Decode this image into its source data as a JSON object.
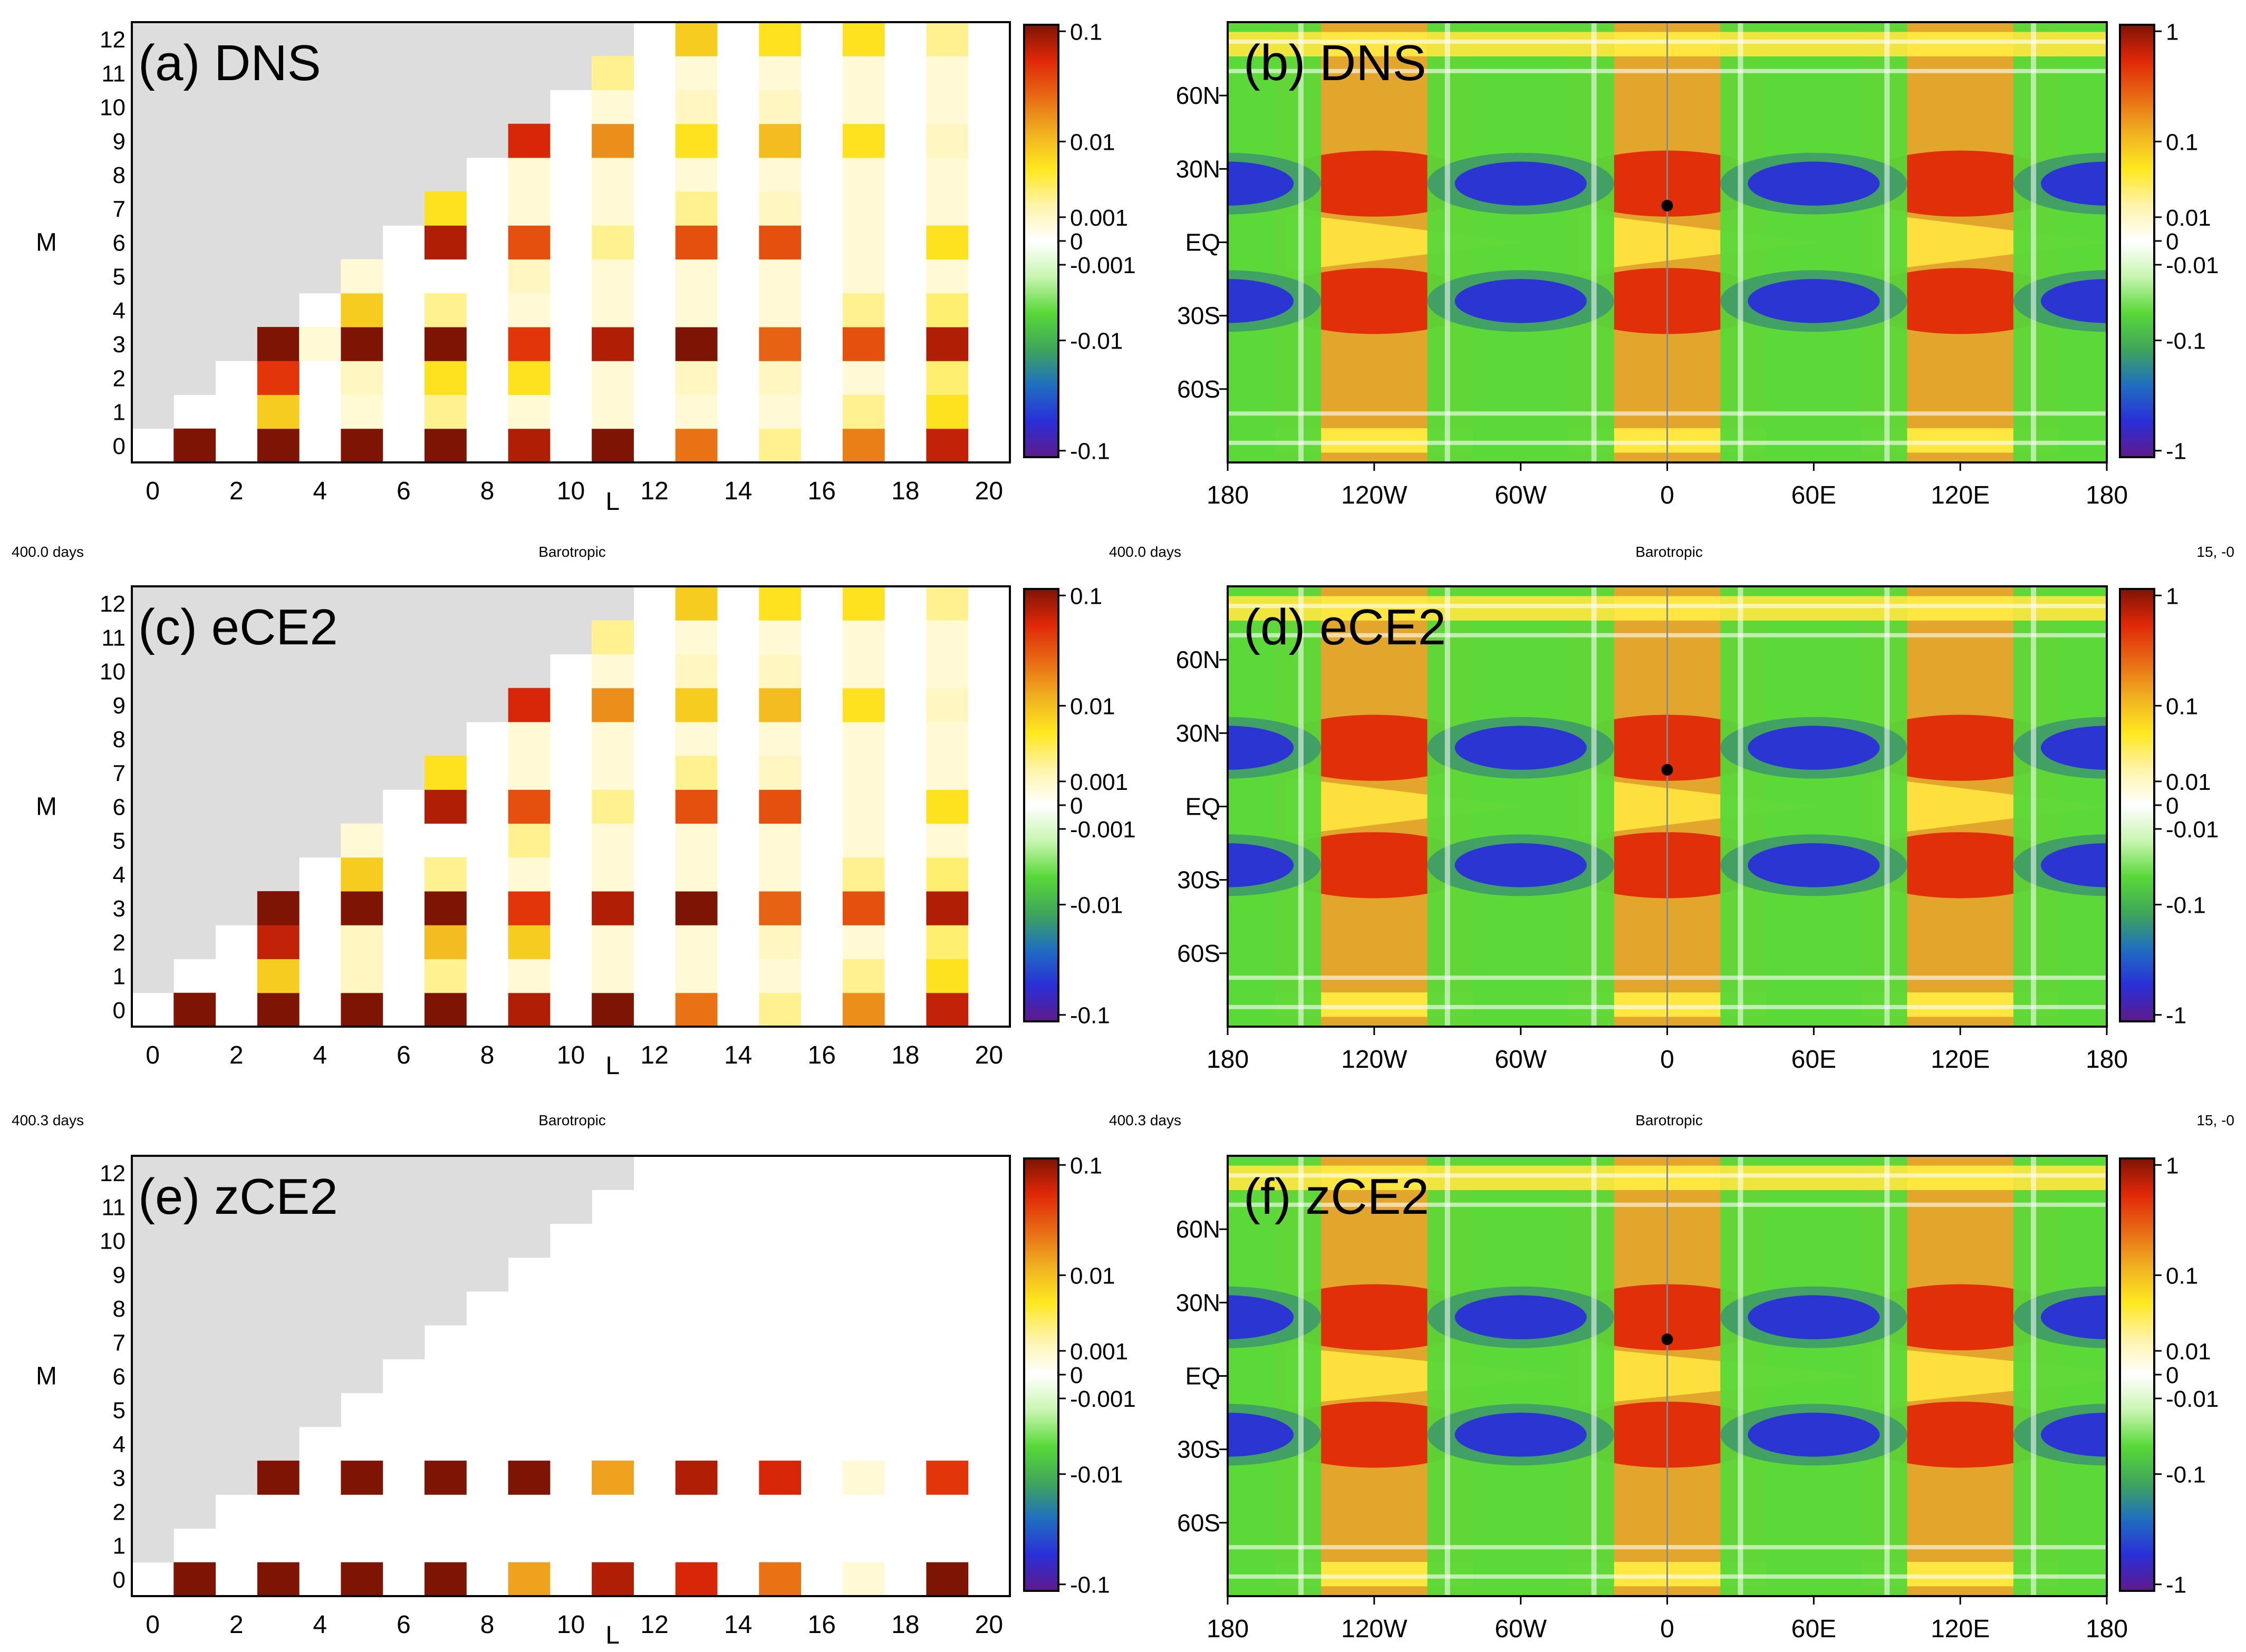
{
  "figure": {
    "colorscale_stops": [
      "#5e1a8a",
      "#2a2fd8",
      "#1f6fbf",
      "#3fa65a",
      "#58d838",
      "#c8f5b0",
      "#ffffff",
      "#fff3a8",
      "#ffe820",
      "#f0b020",
      "#e86a14",
      "#e02808",
      "#7e1404"
    ],
    "gray_region": "#dddddd",
    "map_colors": {
      "pos3": "#e02808",
      "pos2": "#e86a14",
      "pos1": "#f0a028",
      "pos0": "#ffe640",
      "neg0": "#58d838",
      "neg1": "#3f9a6a",
      "neg2": "#2a2fd8",
      "white": "#ffffff"
    },
    "annotations": {
      "row1_left": "400.0 days",
      "row1_center": "Barotropic",
      "row1_mid": "400.0 days",
      "row1_center2": "Barotropic",
      "row1_right": "15, -0",
      "row2_left": "400.3 days",
      "row2_center": "Barotropic",
      "row2_mid": "400.3 days",
      "row2_center2": "Barotropic",
      "row2_right": "15, -0"
    }
  },
  "chart_data": [
    {
      "id": "a",
      "type": "heatmap",
      "title": "(a) DNS",
      "xlabel": "L",
      "ylabel": "M",
      "x_ticks": [
        "0",
        "2",
        "4",
        "6",
        "8",
        "10",
        "12",
        "14",
        "16",
        "18",
        "20"
      ],
      "y_ticks": [
        "0",
        "1",
        "2",
        "3",
        "4",
        "5",
        "6",
        "7",
        "8",
        "9",
        "10",
        "11",
        "12"
      ],
      "xlim": [
        0,
        21
      ],
      "ylim": [
        0,
        13
      ],
      "colorbar_ticks": [
        "0.1",
        "0.01",
        "0.001",
        "0",
        "-0.001",
        "-0.01",
        "-0.1"
      ],
      "cells": [
        [
          1,
          0,
          0.2
        ],
        [
          3,
          0,
          0.2
        ],
        [
          5,
          0,
          0.2
        ],
        [
          7,
          0,
          0.2
        ],
        [
          9,
          0,
          0.06
        ],
        [
          11,
          0,
          0.1
        ],
        [
          13,
          0,
          0.012
        ],
        [
          15,
          0,
          0.0008
        ],
        [
          17,
          0,
          0.01
        ],
        [
          19,
          0,
          0.05
        ],
        [
          3,
          1,
          0.003
        ],
        [
          5,
          1,
          0.0004
        ],
        [
          7,
          1,
          0.0008
        ],
        [
          9,
          1,
          0.0004
        ],
        [
          11,
          1,
          0.0002
        ],
        [
          13,
          1,
          0.0002
        ],
        [
          15,
          1,
          0.0003
        ],
        [
          17,
          1,
          0.0008
        ],
        [
          19,
          1,
          0.002
        ],
        [
          3,
          2,
          0.03
        ],
        [
          5,
          2,
          0.0005
        ],
        [
          7,
          2,
          0.002
        ],
        [
          9,
          2,
          0.002
        ],
        [
          11,
          2,
          0.0003
        ],
        [
          13,
          2,
          0.0005
        ],
        [
          15,
          2,
          0.0005
        ],
        [
          17,
          2,
          0.0003
        ],
        [
          19,
          2,
          0.001
        ],
        [
          3,
          3,
          0.2
        ],
        [
          4,
          3,
          0.0003
        ],
        [
          5,
          3,
          0.2
        ],
        [
          7,
          3,
          0.2
        ],
        [
          9,
          3,
          0.03
        ],
        [
          11,
          3,
          0.06
        ],
        [
          13,
          3,
          0.1
        ],
        [
          15,
          3,
          0.015
        ],
        [
          17,
          3,
          0.02
        ],
        [
          19,
          3,
          0.06
        ],
        [
          5,
          4,
          0.003
        ],
        [
          7,
          4,
          0.0008
        ],
        [
          9,
          4,
          0.0003
        ],
        [
          11,
          4,
          0.0002
        ],
        [
          13,
          4,
          0.0002
        ],
        [
          15,
          4,
          0.0003
        ],
        [
          17,
          4,
          0.0008
        ],
        [
          19,
          4,
          0.001
        ],
        [
          5,
          5,
          0.0002
        ],
        [
          9,
          5,
          0.0005
        ],
        [
          11,
          5,
          0.0003
        ],
        [
          13,
          5,
          0.0002
        ],
        [
          15,
          5,
          0.0002
        ],
        [
          17,
          5,
          0.0002
        ],
        [
          19,
          5,
          0.0003
        ],
        [
          7,
          6,
          0.06
        ],
        [
          9,
          6,
          0.02
        ],
        [
          11,
          6,
          0.0008
        ],
        [
          13,
          6,
          0.02
        ],
        [
          15,
          6,
          0.02
        ],
        [
          17,
          6,
          0.0003
        ],
        [
          19,
          6,
          0.002
        ],
        [
          7,
          7,
          0.002
        ],
        [
          9,
          7,
          0.0002
        ],
        [
          11,
          7,
          0.0003
        ],
        [
          13,
          7,
          0.0008
        ],
        [
          15,
          7,
          0.0005
        ],
        [
          17,
          7,
          0.0002
        ],
        [
          19,
          7,
          0.0002
        ],
        [
          9,
          8,
          0.0002
        ],
        [
          11,
          8,
          0.0002
        ],
        [
          13,
          8,
          0.0002
        ],
        [
          15,
          8,
          0.0002
        ],
        [
          17,
          8,
          0.0002
        ],
        [
          19,
          8,
          0.0002
        ],
        [
          9,
          9,
          0.04
        ],
        [
          11,
          9,
          0.008
        ],
        [
          13,
          9,
          0.002
        ],
        [
          15,
          9,
          0.004
        ],
        [
          17,
          9,
          0.002
        ],
        [
          19,
          9,
          0.0005
        ],
        [
          11,
          10,
          0.0003
        ],
        [
          13,
          10,
          0.0005
        ],
        [
          15,
          10,
          0.0005
        ],
        [
          17,
          10,
          0.0003
        ],
        [
          19,
          10,
          0.0002
        ],
        [
          11,
          11,
          0.0008
        ],
        [
          13,
          11,
          0.0003
        ],
        [
          15,
          11,
          0.0002
        ],
        [
          17,
          11,
          0.0002
        ],
        [
          19,
          11,
          0.0002
        ],
        [
          13,
          12,
          0.003
        ],
        [
          15,
          12,
          0.002
        ],
        [
          17,
          12,
          0.002
        ],
        [
          19,
          12,
          0.0008
        ]
      ]
    },
    {
      "id": "b",
      "type": "heatmap",
      "title": "(b) DNS",
      "x_ticks": [
        "180",
        "120W",
        "60W",
        "0",
        "60E",
        "120E",
        "180"
      ],
      "y_ticks": [
        "60N",
        "30N",
        "EQ",
        "30S",
        "60S"
      ],
      "xlim": [
        -180,
        180
      ],
      "ylim": [
        -90,
        90
      ],
      "colorbar_ticks": [
        "1",
        "0.1",
        "0.01",
        "0",
        "-0.01",
        "-0.1",
        "-1"
      ],
      "marker": {
        "lon": 0,
        "lat": 15
      }
    },
    {
      "id": "c",
      "type": "heatmap",
      "title": "(c) eCE2",
      "xlabel": "L",
      "ylabel": "M",
      "x_ticks": [
        "0",
        "2",
        "4",
        "6",
        "8",
        "10",
        "12",
        "14",
        "16",
        "18",
        "20"
      ],
      "y_ticks": [
        "0",
        "1",
        "2",
        "3",
        "4",
        "5",
        "6",
        "7",
        "8",
        "9",
        "10",
        "11",
        "12"
      ],
      "xlim": [
        0,
        21
      ],
      "ylim": [
        0,
        13
      ],
      "colorbar_ticks": [
        "0.1",
        "0.01",
        "0.001",
        "0",
        "-0.001",
        "-0.01",
        "-0.1"
      ],
      "cells": [
        [
          1,
          0,
          0.2
        ],
        [
          3,
          0,
          0.2
        ],
        [
          5,
          0,
          0.2
        ],
        [
          7,
          0,
          0.2
        ],
        [
          9,
          0,
          0.06
        ],
        [
          11,
          0,
          0.12
        ],
        [
          13,
          0,
          0.012
        ],
        [
          15,
          0,
          0.0008
        ],
        [
          17,
          0,
          0.008
        ],
        [
          19,
          0,
          0.05
        ],
        [
          3,
          1,
          0.003
        ],
        [
          5,
          1,
          0.0005
        ],
        [
          7,
          1,
          0.0008
        ],
        [
          9,
          1,
          0.0003
        ],
        [
          11,
          1,
          0.0002
        ],
        [
          13,
          1,
          0.0002
        ],
        [
          15,
          1,
          0.0002
        ],
        [
          17,
          1,
          0.0008
        ],
        [
          19,
          1,
          0.002
        ],
        [
          3,
          2,
          0.05
        ],
        [
          5,
          2,
          0.0005
        ],
        [
          7,
          2,
          0.004
        ],
        [
          9,
          2,
          0.003
        ],
        [
          11,
          2,
          0.0002
        ],
        [
          13,
          2,
          0.0003
        ],
        [
          15,
          2,
          0.0005
        ],
        [
          17,
          2,
          0.0003
        ],
        [
          19,
          2,
          0.001
        ],
        [
          3,
          3,
          0.2
        ],
        [
          5,
          3,
          0.2
        ],
        [
          7,
          3,
          0.2
        ],
        [
          9,
          3,
          0.03
        ],
        [
          11,
          3,
          0.06
        ],
        [
          13,
          3,
          0.1
        ],
        [
          15,
          3,
          0.015
        ],
        [
          17,
          3,
          0.02
        ],
        [
          19,
          3,
          0.06
        ],
        [
          5,
          4,
          0.003
        ],
        [
          7,
          4,
          0.0008
        ],
        [
          9,
          4,
          0.0002
        ],
        [
          11,
          4,
          0.0002
        ],
        [
          13,
          4,
          0.0002
        ],
        [
          15,
          4,
          0.0003
        ],
        [
          17,
          4,
          0.0008
        ],
        [
          19,
          4,
          0.001
        ],
        [
          5,
          5,
          0.0002
        ],
        [
          9,
          5,
          0.0008
        ],
        [
          11,
          5,
          0.0003
        ],
        [
          13,
          5,
          0.0002
        ],
        [
          15,
          5,
          0.0002
        ],
        [
          17,
          5,
          0.0002
        ],
        [
          19,
          5,
          0.0003
        ],
        [
          7,
          6,
          0.06
        ],
        [
          9,
          6,
          0.02
        ],
        [
          11,
          6,
          0.0008
        ],
        [
          13,
          6,
          0.02
        ],
        [
          15,
          6,
          0.02
        ],
        [
          17,
          6,
          0.0003
        ],
        [
          19,
          6,
          0.002
        ],
        [
          7,
          7,
          0.002
        ],
        [
          9,
          7,
          0.0002
        ],
        [
          11,
          7,
          0.0003
        ],
        [
          13,
          7,
          0.0008
        ],
        [
          15,
          7,
          0.0005
        ],
        [
          17,
          7,
          0.0002
        ],
        [
          19,
          7,
          0.0002
        ],
        [
          9,
          8,
          0.0002
        ],
        [
          11,
          8,
          0.0002
        ],
        [
          13,
          8,
          0.0002
        ],
        [
          15,
          8,
          0.0002
        ],
        [
          17,
          8,
          0.0002
        ],
        [
          19,
          8,
          0.0002
        ],
        [
          9,
          9,
          0.04
        ],
        [
          11,
          9,
          0.008
        ],
        [
          13,
          9,
          0.003
        ],
        [
          15,
          9,
          0.004
        ],
        [
          17,
          9,
          0.002
        ],
        [
          19,
          9,
          0.0005
        ],
        [
          11,
          10,
          0.0003
        ],
        [
          13,
          10,
          0.0005
        ],
        [
          15,
          10,
          0.0005
        ],
        [
          17,
          10,
          0.0003
        ],
        [
          19,
          10,
          0.0002
        ],
        [
          11,
          11,
          0.0008
        ],
        [
          13,
          11,
          0.0003
        ],
        [
          15,
          11,
          0.0002
        ],
        [
          17,
          11,
          0.0002
        ],
        [
          19,
          11,
          0.0002
        ],
        [
          13,
          12,
          0.003
        ],
        [
          15,
          12,
          0.002
        ],
        [
          17,
          12,
          0.002
        ],
        [
          19,
          12,
          0.0008
        ]
      ]
    },
    {
      "id": "d",
      "type": "heatmap",
      "title": "(d) eCE2",
      "x_ticks": [
        "180",
        "120W",
        "60W",
        "0",
        "60E",
        "120E",
        "180"
      ],
      "y_ticks": [
        "60N",
        "30N",
        "EQ",
        "30S",
        "60S"
      ],
      "xlim": [
        -180,
        180
      ],
      "ylim": [
        -90,
        90
      ],
      "colorbar_ticks": [
        "1",
        "0.1",
        "0.01",
        "0",
        "-0.01",
        "-0.1",
        "-1"
      ],
      "marker": {
        "lon": 0,
        "lat": 15
      }
    },
    {
      "id": "e",
      "type": "heatmap",
      "title": "(e) zCE2",
      "xlabel": "L",
      "ylabel": "M",
      "x_ticks": [
        "0",
        "2",
        "4",
        "6",
        "8",
        "10",
        "12",
        "14",
        "16",
        "18",
        "20"
      ],
      "y_ticks": [
        "0",
        "1",
        "2",
        "3",
        "4",
        "5",
        "6",
        "7",
        "8",
        "9",
        "10",
        "11",
        "12"
      ],
      "xlim": [
        0,
        21
      ],
      "ylim": [
        0,
        13
      ],
      "colorbar_ticks": [
        "0.1",
        "0.01",
        "0.001",
        "0",
        "-0.001",
        "-0.01",
        "-0.1"
      ],
      "cells": [
        [
          1,
          0,
          0.2
        ],
        [
          3,
          0,
          0.2
        ],
        [
          5,
          0,
          0.2
        ],
        [
          7,
          0,
          0.2
        ],
        [
          9,
          0,
          0.006
        ],
        [
          11,
          0,
          0.06
        ],
        [
          13,
          0,
          0.04
        ],
        [
          15,
          0,
          0.012
        ],
        [
          17,
          0,
          0.0003
        ],
        [
          19,
          0,
          0.1
        ],
        [
          3,
          3,
          0.2
        ],
        [
          5,
          3,
          0.2
        ],
        [
          7,
          3,
          0.2
        ],
        [
          9,
          3,
          0.15
        ],
        [
          11,
          3,
          0.006
        ],
        [
          13,
          3,
          0.06
        ],
        [
          15,
          3,
          0.04
        ],
        [
          17,
          3,
          0.0003
        ],
        [
          19,
          3,
          0.03
        ]
      ]
    },
    {
      "id": "f",
      "type": "heatmap",
      "title": "(f) zCE2",
      "x_ticks": [
        "180",
        "120W",
        "60W",
        "0",
        "60E",
        "120E",
        "180"
      ],
      "y_ticks": [
        "60N",
        "30N",
        "EQ",
        "30S",
        "60S"
      ],
      "xlim": [
        -180,
        180
      ],
      "ylim": [
        -90,
        90
      ],
      "colorbar_ticks": [
        "1",
        "0.1",
        "0.01",
        "0",
        "-0.01",
        "-0.1",
        "-1"
      ],
      "marker": {
        "lon": 0,
        "lat": 15
      }
    }
  ]
}
